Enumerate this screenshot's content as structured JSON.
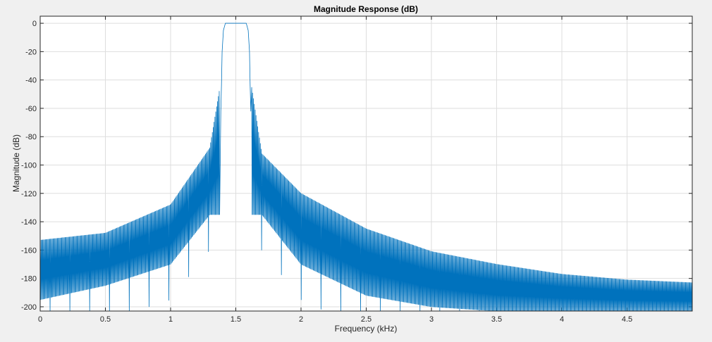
{
  "chart_data": {
    "type": "line",
    "title": "Magnitude Response (dB)",
    "xlabel": "Frequency (kHz)",
    "ylabel": "Magnitude (dB)",
    "xlim": [
      0,
      5
    ],
    "ylim": [
      -203,
      5
    ],
    "x_ticks": [
      0,
      0.5,
      1,
      1.5,
      2,
      2.5,
      3,
      3.5,
      4,
      4.5
    ],
    "x_tick_labels": [
      "0",
      "0.5",
      "1",
      "1.5",
      "2",
      "2.5",
      "3",
      "3.5",
      "4",
      "4.5"
    ],
    "y_ticks": [
      0,
      -20,
      -40,
      -60,
      -80,
      -100,
      -120,
      -140,
      -160,
      -180,
      -200
    ],
    "y_tick_labels": [
      "0",
      "-20",
      "-40",
      "-60",
      "-80",
      "-100",
      "-120",
      "-140",
      "-160",
      "-180",
      "-200"
    ],
    "grid": true,
    "line_color": "#0072bd",
    "passband_khz": [
      1.42,
      1.58
    ],
    "passband_level_db": 0,
    "envelope": {
      "x": [
        0,
        0.5,
        1,
        1.3,
        1.38,
        1.62,
        1.7,
        2,
        2.5,
        3,
        3.5,
        4,
        4.5,
        5
      ],
      "y": [
        -153,
        -148,
        -128,
        -88,
        -44,
        -44,
        -92,
        -120,
        -145,
        -161,
        -170,
        -177,
        -181,
        -183
      ]
    },
    "notch_depth_db": {
      "x": [
        0,
        0.5,
        1,
        1.3,
        1.7,
        2,
        2.5,
        3,
        3.5,
        4,
        4.5,
        5
      ],
      "y": [
        -195,
        -185,
        -170,
        -135,
        -135,
        -170,
        -192,
        -200,
        -203,
        -203,
        -203,
        -203
      ]
    }
  },
  "colors": {
    "figure_background": "#f0f0f0",
    "axes_background": "#ffffff",
    "grid": "#dedede",
    "axis": "#262626",
    "line": "#0072bd"
  }
}
